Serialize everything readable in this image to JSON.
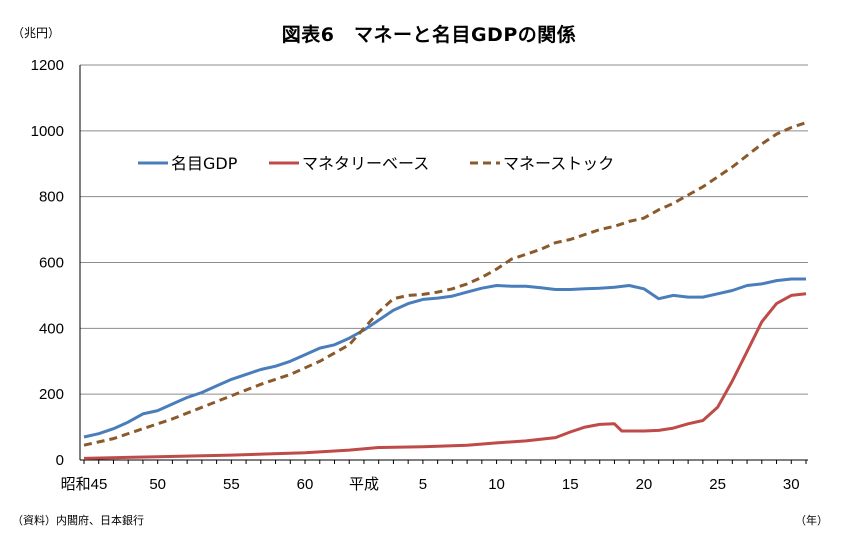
{
  "chart_data": {
    "type": "line",
    "title": "図表6　マネーと名目GDPの関係",
    "ylabel": "（兆円）",
    "xlabel": "（年）",
    "source": "（資料）内閣府、日本銀行",
    "ylim": [
      0,
      1200
    ],
    "yticks": [
      0,
      200,
      400,
      600,
      800,
      1000,
      1200
    ],
    "xlim": [
      1970,
      2019
    ],
    "xticks": [
      {
        "x": 1970,
        "label": "昭和45"
      },
      {
        "x": 1975,
        "label": "50"
      },
      {
        "x": 1980,
        "label": "55"
      },
      {
        "x": 1985,
        "label": "60"
      },
      {
        "x": 1989,
        "label": "平成"
      },
      {
        "x": 1993,
        "label": "5"
      },
      {
        "x": 1998,
        "label": "10"
      },
      {
        "x": 2003,
        "label": "15"
      },
      {
        "x": 2008,
        "label": "20"
      },
      {
        "x": 2013,
        "label": "25"
      },
      {
        "x": 2018,
        "label": "30"
      }
    ],
    "grid": true,
    "legend_position": "top-left",
    "series": [
      {
        "name": "名目GDP",
        "color": "#4A7EBB",
        "dash": "solid",
        "points": [
          [
            1970,
            70
          ],
          [
            1971,
            80
          ],
          [
            1972,
            95
          ],
          [
            1973,
            115
          ],
          [
            1974,
            140
          ],
          [
            1975,
            150
          ],
          [
            1976,
            170
          ],
          [
            1977,
            190
          ],
          [
            1978,
            205
          ],
          [
            1979,
            225
          ],
          [
            1980,
            245
          ],
          [
            1981,
            260
          ],
          [
            1982,
            275
          ],
          [
            1983,
            285
          ],
          [
            1984,
            300
          ],
          [
            1985,
            320
          ],
          [
            1986,
            340
          ],
          [
            1987,
            350
          ],
          [
            1988,
            370
          ],
          [
            1989,
            395
          ],
          [
            1990,
            425
          ],
          [
            1991,
            455
          ],
          [
            1992,
            475
          ],
          [
            1993,
            488
          ],
          [
            1994,
            492
          ],
          [
            1995,
            498
          ],
          [
            1996,
            510
          ],
          [
            1997,
            522
          ],
          [
            1998,
            530
          ],
          [
            1999,
            528
          ],
          [
            2000,
            528
          ],
          [
            2001,
            523
          ],
          [
            2002,
            518
          ],
          [
            2003,
            518
          ],
          [
            2004,
            520
          ],
          [
            2005,
            522
          ],
          [
            2006,
            525
          ],
          [
            2007,
            530
          ],
          [
            2008,
            520
          ],
          [
            2009,
            490
          ],
          [
            2010,
            500
          ],
          [
            2011,
            495
          ],
          [
            2012,
            495
          ],
          [
            2013,
            505
          ],
          [
            2014,
            515
          ],
          [
            2015,
            530
          ],
          [
            2016,
            535
          ],
          [
            2017,
            545
          ],
          [
            2018,
            550
          ],
          [
            2019,
            550
          ]
        ]
      },
      {
        "name": "マネタリーベース",
        "color": "#BE4B48",
        "dash": "solid",
        "points": [
          [
            1970,
            5
          ],
          [
            1975,
            10
          ],
          [
            1980,
            15
          ],
          [
            1985,
            22
          ],
          [
            1988,
            30
          ],
          [
            1990,
            38
          ],
          [
            1993,
            40
          ],
          [
            1996,
            45
          ],
          [
            1998,
            52
          ],
          [
            2000,
            58
          ],
          [
            2002,
            68
          ],
          [
            2003,
            85
          ],
          [
            2004,
            100
          ],
          [
            2005,
            108
          ],
          [
            2006,
            110
          ],
          [
            2006.5,
            88
          ],
          [
            2007,
            88
          ],
          [
            2008,
            88
          ],
          [
            2009,
            90
          ],
          [
            2010,
            97
          ],
          [
            2011,
            110
          ],
          [
            2012,
            120
          ],
          [
            2013,
            160
          ],
          [
            2014,
            240
          ],
          [
            2015,
            330
          ],
          [
            2016,
            420
          ],
          [
            2017,
            475
          ],
          [
            2018,
            500
          ],
          [
            2019,
            505
          ]
        ]
      },
      {
        "name": "マネーストック",
        "color": "#8B5A2B",
        "dash": "dashed",
        "points": [
          [
            1970,
            45
          ],
          [
            1972,
            65
          ],
          [
            1974,
            95
          ],
          [
            1976,
            125
          ],
          [
            1978,
            160
          ],
          [
            1980,
            195
          ],
          [
            1982,
            230
          ],
          [
            1984,
            260
          ],
          [
            1986,
            300
          ],
          [
            1988,
            350
          ],
          [
            1989,
            400
          ],
          [
            1990,
            450
          ],
          [
            1991,
            490
          ],
          [
            1992,
            500
          ],
          [
            1993,
            503
          ],
          [
            1994,
            510
          ],
          [
            1995,
            520
          ],
          [
            1996,
            535
          ],
          [
            1997,
            555
          ],
          [
            1998,
            580
          ],
          [
            1999,
            610
          ],
          [
            2000,
            625
          ],
          [
            2001,
            640
          ],
          [
            2002,
            660
          ],
          [
            2003,
            670
          ],
          [
            2004,
            685
          ],
          [
            2005,
            700
          ],
          [
            2006,
            710
          ],
          [
            2007,
            725
          ],
          [
            2008,
            735
          ],
          [
            2009,
            760
          ],
          [
            2010,
            780
          ],
          [
            2011,
            805
          ],
          [
            2012,
            830
          ],
          [
            2013,
            860
          ],
          [
            2014,
            890
          ],
          [
            2015,
            925
          ],
          [
            2016,
            960
          ],
          [
            2017,
            990
          ],
          [
            2018,
            1010
          ],
          [
            2019,
            1025
          ]
        ]
      }
    ]
  }
}
